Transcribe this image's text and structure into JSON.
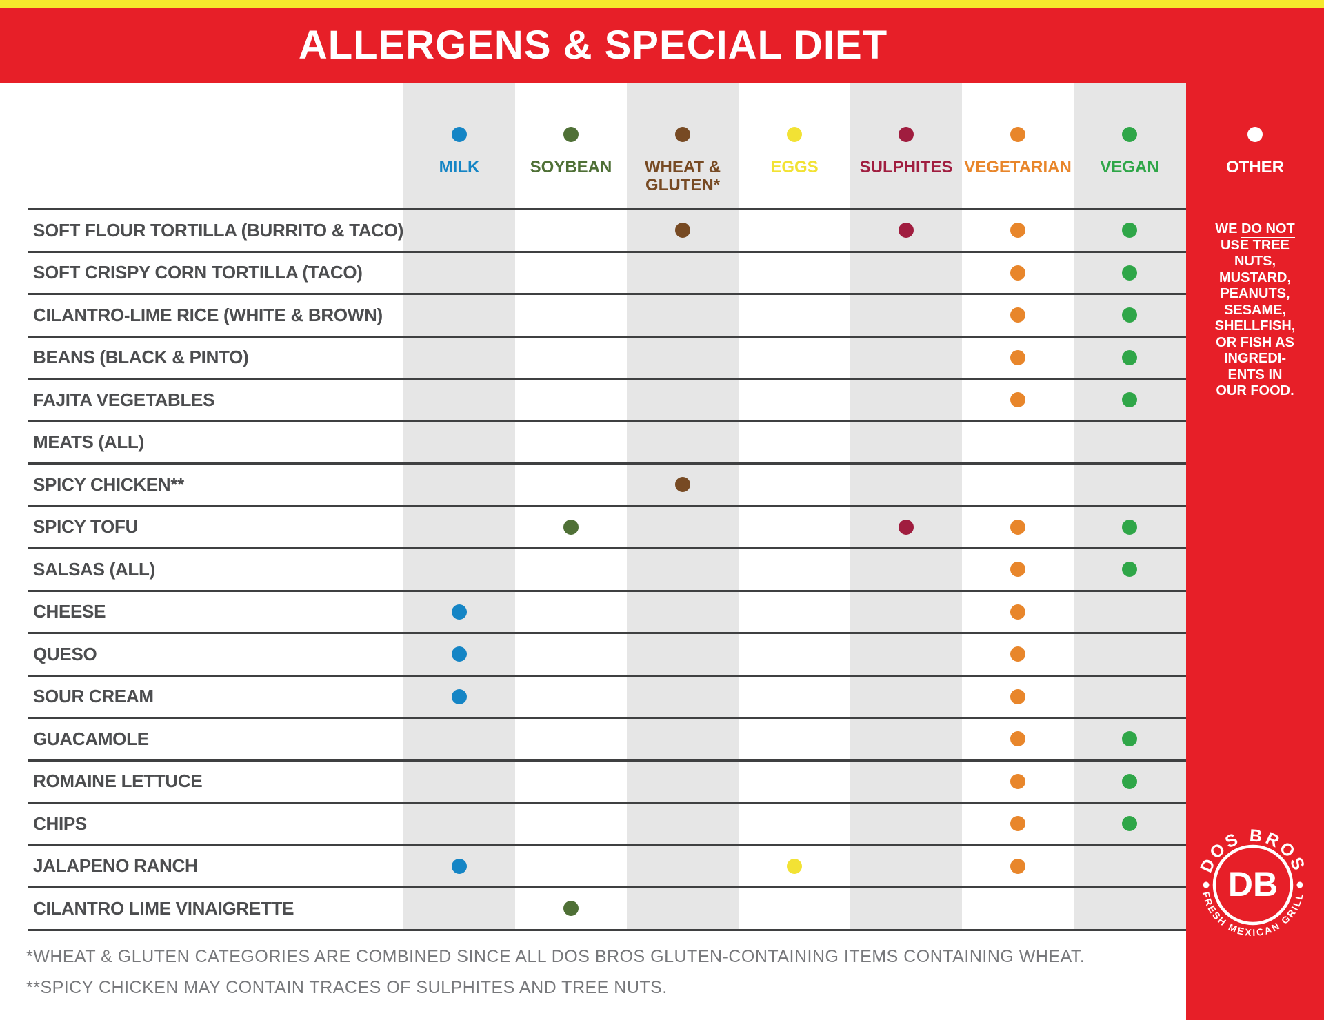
{
  "title": "ALLERGENS & SPECIAL DIET",
  "columns": [
    {
      "label": "MILK",
      "color": "#1585C5",
      "striped": true
    },
    {
      "label": "SOYBEAN",
      "color": "#4F7036",
      "striped": false
    },
    {
      "label": "WHEAT &\nGLUTEN*",
      "color": "#774A23",
      "striped": true
    },
    {
      "label": "EGGS",
      "color": "#F2E234",
      "striped": false
    },
    {
      "label": "SULPHITES",
      "color": "#A01D3F",
      "striped": true
    },
    {
      "label": "VEGETARIAN",
      "color": "#E8862B",
      "striped": false
    },
    {
      "label": "VEGAN",
      "color": "#2FA648",
      "striped": true
    }
  ],
  "rows": [
    {
      "label": "SOFT FLOUR TORTILLA (BURRITO & TACO)",
      "marks": [
        2,
        4,
        5,
        6
      ]
    },
    {
      "label": "SOFT CRISPY CORN TORTILLA (TACO)",
      "marks": [
        5,
        6
      ]
    },
    {
      "label": "CILANTRO-LIME RICE (WHITE & BROWN)",
      "marks": [
        5,
        6
      ]
    },
    {
      "label": "BEANS (BLACK & PINTO)",
      "marks": [
        5,
        6
      ]
    },
    {
      "label": "FAJITA VEGETABLES",
      "marks": [
        5,
        6
      ]
    },
    {
      "label": "MEATS (ALL)",
      "marks": []
    },
    {
      "label": "SPICY CHICKEN**",
      "marks": [
        2
      ]
    },
    {
      "label": "SPICY TOFU",
      "marks": [
        1,
        4,
        5,
        6
      ]
    },
    {
      "label": "SALSAS (ALL)",
      "marks": [
        5,
        6
      ]
    },
    {
      "label": "CHEESE",
      "marks": [
        0,
        5
      ]
    },
    {
      "label": "QUESO",
      "marks": [
        0,
        5
      ]
    },
    {
      "label": "SOUR CREAM",
      "marks": [
        0,
        5
      ]
    },
    {
      "label": "GUACAMOLE",
      "marks": [
        5,
        6
      ]
    },
    {
      "label": "ROMAINE LETTUCE",
      "marks": [
        5,
        6
      ]
    },
    {
      "label": "CHIPS",
      "marks": [
        5,
        6
      ]
    },
    {
      "label": "JALAPENO RANCH",
      "marks": [
        0,
        3,
        5
      ]
    },
    {
      "label": "CILANTRO LIME VINAIGRETTE",
      "marks": [
        1
      ]
    }
  ],
  "sidebar": {
    "other": {
      "label": "OTHER",
      "dot_color": "#FFFFFF"
    },
    "note": {
      "we": "WE ",
      "do_not": "DO NOT",
      "lines": [
        "USE TREE",
        "NUTS,",
        "MUSTARD,",
        "PEANUTS,",
        "SESAME,",
        "SHELLFISH,",
        "OR FISH AS",
        "INGREDI-",
        "ENTS IN",
        "OUR FOOD."
      ]
    }
  },
  "footnotes": {
    "line1": "*WHEAT & GLUTEN CATEGORIES ARE COMBINED SINCE ALL DOS BROS GLUTEN-CONTAINING ITEMS CONTAINING WHEAT.",
    "line2": "**SPICY CHICKEN MAY CONTAIN TRACES OF SULPHITES AND TREE NUTS."
  },
  "logo": {
    "arc_top": "DOS BROS",
    "monogram": "DB",
    "arc_bottom": "FRESH MEXICAN GRILL"
  },
  "colors": {
    "brand_red": "#E71F28",
    "brand_yellow": "#F5E82C",
    "stripe_gray": "#E6E6E6",
    "grid_line": "#3F4041",
    "row_label_text": "#4C4D4F",
    "footnote_text": "#77787B",
    "white": "#FFFFFF"
  }
}
